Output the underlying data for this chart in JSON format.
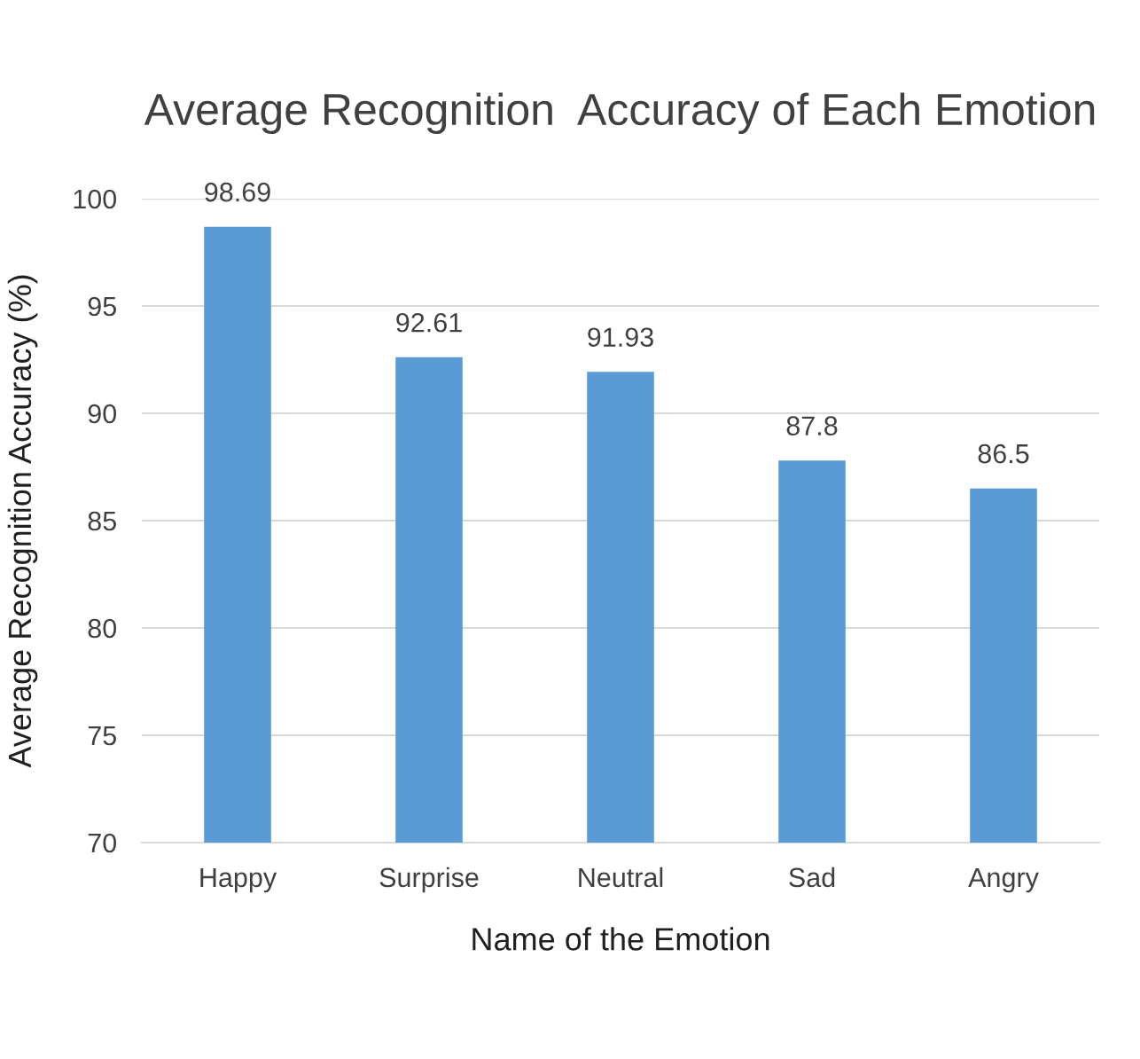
{
  "chart_data": {
    "type": "bar",
    "title": "Average Recognition  Accuracy of Each Emotion",
    "xlabel": "Name of the Emotion",
    "ylabel": "Average Recognition Accuracy (%)",
    "categories": [
      "Happy",
      "Surprise",
      "Neutral",
      "Sad",
      "Angry"
    ],
    "values": [
      98.69,
      92.61,
      91.93,
      87.8,
      86.5
    ],
    "color": "#5b9bd5",
    "ylim": [
      70,
      100
    ],
    "yticks": [
      70,
      75,
      80,
      85,
      90,
      95,
      100
    ],
    "grid": "y",
    "data_labels": true
  }
}
